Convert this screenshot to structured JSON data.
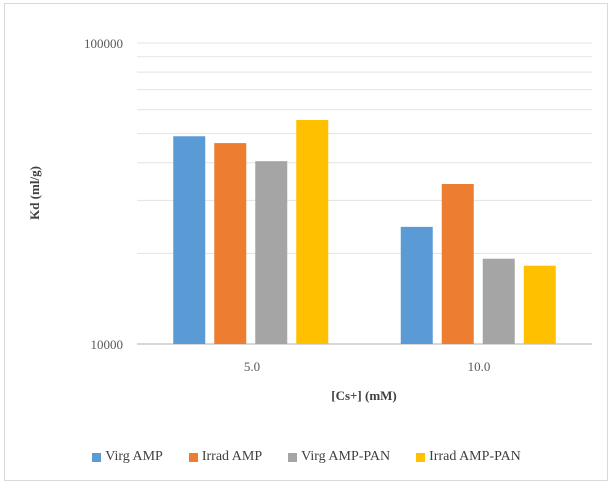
{
  "chart_data": {
    "type": "bar",
    "title": "",
    "xlabel": "[Cs+] (mM)",
    "ylabel": "Kd (ml/g)",
    "yscale": "log",
    "ylim": [
      10000,
      100000
    ],
    "y_tick_labels": [
      "100000",
      "10000"
    ],
    "grid": true,
    "legend_position": "bottom",
    "categories": [
      "5.0",
      "10.0"
    ],
    "series": [
      {
        "name": "Virg AMP",
        "color": "#5b9bd5",
        "values": [
          49000,
          24500
        ]
      },
      {
        "name": "Irrad AMP",
        "color": "#ed7d31",
        "values": [
          46500,
          34000
        ]
      },
      {
        "name": "Virg AMP-PAN",
        "color": "#a5a5a5",
        "values": [
          40500,
          19200
        ]
      },
      {
        "name": "Irrad AMP-PAN",
        "color": "#ffc000",
        "values": [
          55500,
          18200
        ]
      }
    ]
  }
}
